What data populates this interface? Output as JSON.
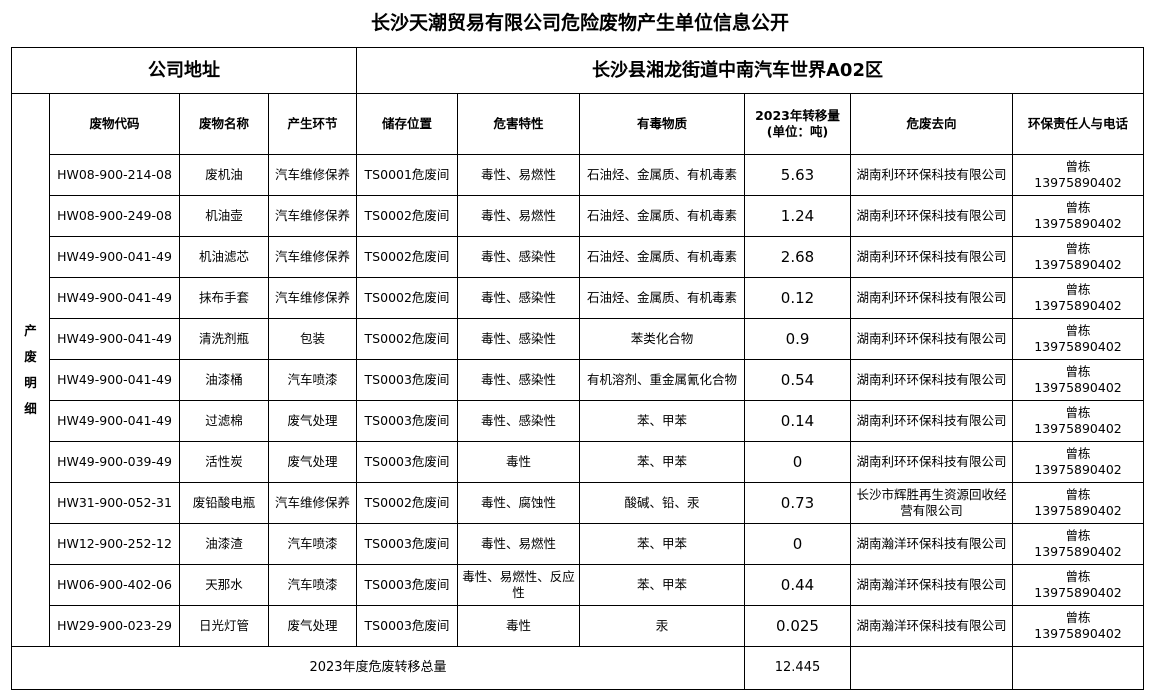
{
  "title": "长沙天潮贸易有限公司危险废物产生单位信息公开",
  "address": {
    "label": "公司地址",
    "value": "长沙县湘龙街道中南汽车世界A02区"
  },
  "side_label": [
    "产",
    "废",
    "明",
    "细"
  ],
  "columns": [
    "废物代码",
    "废物名称",
    "产生环节",
    "储存位置",
    "危害特性",
    "有毒物质",
    "2023年转移量",
    "(单位：吨)",
    "危废去向",
    "环保责任人与电话"
  ],
  "rows": [
    {
      "code": "HW08-900-214-08",
      "name": "废机油",
      "stage": "汽车维修保养",
      "storage": "TS0001危废间",
      "hazard": "毒性、易燃性",
      "toxic": "石油烃、金属质、有机毒素",
      "qty": "5.63",
      "dest": "湖南利环环保科技有限公司",
      "person": "曾栋",
      "phone": "13975890402"
    },
    {
      "code": "HW08-900-249-08",
      "name": "机油壶",
      "stage": "汽车维修保养",
      "storage": "TS0002危废间",
      "hazard": "毒性、易燃性",
      "toxic": "石油烃、金属质、有机毒素",
      "qty": "1.24",
      "dest": "湖南利环环保科技有限公司",
      "person": "曾栋",
      "phone": "13975890402"
    },
    {
      "code": "HW49-900-041-49",
      "name": "机油滤芯",
      "stage": "汽车维修保养",
      "storage": "TS0002危废间",
      "hazard": "毒性、感染性",
      "toxic": "石油烃、金属质、有机毒素",
      "qty": "2.68",
      "dest": "湖南利环环保科技有限公司",
      "person": "曾栋",
      "phone": "13975890402"
    },
    {
      "code": "HW49-900-041-49",
      "name": "抹布手套",
      "stage": "汽车维修保养",
      "storage": "TS0002危废间",
      "hazard": "毒性、感染性",
      "toxic": "石油烃、金属质、有机毒素",
      "qty": "0.12",
      "dest": "湖南利环环保科技有限公司",
      "person": "曾栋",
      "phone": "13975890402"
    },
    {
      "code": "HW49-900-041-49",
      "name": "清洗剂瓶",
      "stage": "包装",
      "storage": "TS0002危废间",
      "hazard": "毒性、感染性",
      "toxic": "苯类化合物",
      "qty": "0.9",
      "dest": "湖南利环环保科技有限公司",
      "person": "曾栋",
      "phone": "13975890402"
    },
    {
      "code": "HW49-900-041-49",
      "name": "油漆桶",
      "stage": "汽车喷漆",
      "storage": "TS0003危废间",
      "hazard": "毒性、感染性",
      "toxic": "有机溶剂、重金属氰化合物",
      "qty": "0.54",
      "dest": "湖南利环环保科技有限公司",
      "person": "曾栋",
      "phone": "13975890402"
    },
    {
      "code": "HW49-900-041-49",
      "name": "过滤棉",
      "stage": "废气处理",
      "storage": "TS0003危废间",
      "hazard": "毒性、感染性",
      "toxic": "苯、甲苯",
      "qty": "0.14",
      "dest": "湖南利环环保科技有限公司",
      "person": "曾栋",
      "phone": "13975890402"
    },
    {
      "code": "HW49-900-039-49",
      "name": "活性炭",
      "stage": "废气处理",
      "storage": "TS0003危废间",
      "hazard": "毒性",
      "toxic": "苯、甲苯",
      "qty": "0",
      "dest": "湖南利环环保科技有限公司",
      "person": "曾栋",
      "phone": "13975890402"
    },
    {
      "code": "HW31-900-052-31",
      "name": "废铅酸电瓶",
      "stage": "汽车维修保养",
      "storage": "TS0002危废间",
      "hazard": "毒性、腐蚀性",
      "toxic": "酸碱、铅、汞",
      "qty": "0.73",
      "dest": "长沙市辉胜再生资源回收经营有限公司",
      "person": "曾栋",
      "phone": "13975890402"
    },
    {
      "code": "HW12-900-252-12",
      "name": "油漆渣",
      "stage": "汽车喷漆",
      "storage": "TS0003危废间",
      "hazard": "毒性、易燃性",
      "toxic": "苯、甲苯",
      "qty": "0",
      "dest": "湖南瀚洋环保科技有限公司",
      "person": "曾栋",
      "phone": "13975890402"
    },
    {
      "code": "HW06-900-402-06",
      "name": "天那水",
      "stage": "汽车喷漆",
      "storage": "TS0003危废间",
      "hazard": "毒性、易燃性、反应性",
      "toxic": "苯、甲苯",
      "qty": "0.44",
      "dest": "湖南瀚洋环保科技有限公司",
      "person": "曾栋",
      "phone": "13975890402"
    },
    {
      "code": "HW29-900-023-29",
      "name": "日光灯管",
      "stage": "废气处理",
      "storage": "TS0003危废间",
      "hazard": "毒性",
      "toxic": "汞",
      "qty": "0.025",
      "dest": "湖南瀚洋环保科技有限公司",
      "person": "曾栋",
      "phone": "13975890402"
    }
  ],
  "total": {
    "label": "2023年度危废转移总量",
    "value": "12.445"
  }
}
